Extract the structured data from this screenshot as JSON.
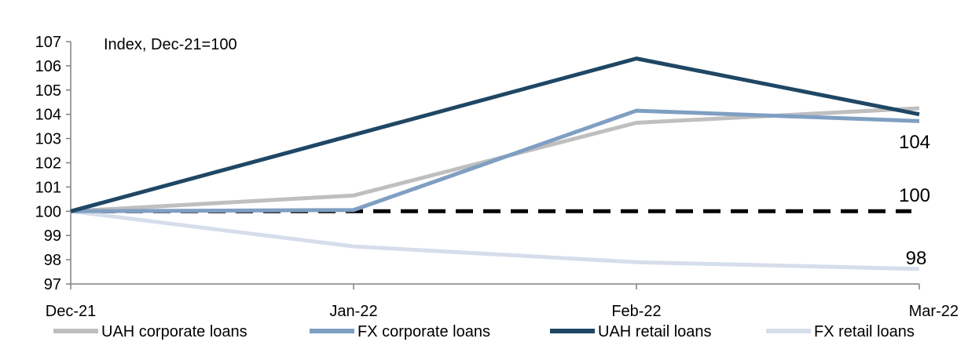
{
  "chart_data": {
    "type": "line",
    "annotation": "Index, Dec-21=100",
    "categories": [
      "Dec-21",
      "Jan-22",
      "Feb-22",
      "Mar-22"
    ],
    "ylim": [
      97,
      107
    ],
    "yticks": [
      "97",
      "98",
      "99",
      "100",
      "101",
      "102",
      "103",
      "104",
      "105",
      "106",
      "107"
    ],
    "grid": false,
    "legend_position": "bottom",
    "series": [
      {
        "name": "UAH corporate loans",
        "values": [
          100,
          100.65,
          103.65,
          104.25
        ],
        "color": "#bfbfbf"
      },
      {
        "name": "FX corporate loans",
        "values": [
          100,
          100.05,
          104.15,
          103.72
        ],
        "color": "#7f9fc2"
      },
      {
        "name": "UAH retail loans",
        "values": [
          100,
          103.15,
          106.3,
          104.0
        ],
        "color": "#1f4765"
      },
      {
        "name": "FX retail loans",
        "values": [
          100,
          98.55,
          97.9,
          97.62
        ],
        "color": "#d6deec"
      }
    ],
    "reference_line": {
      "value": 100,
      "color": "#000000",
      "style": "dashed"
    },
    "data_labels": [
      "104",
      "100",
      "98"
    ]
  }
}
